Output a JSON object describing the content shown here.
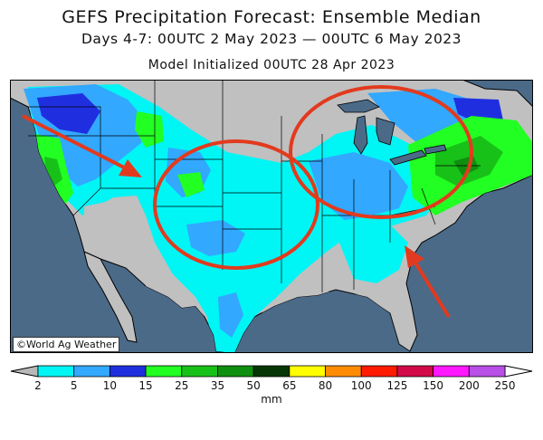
{
  "header": {
    "title": "GEFS Precipitation Forecast: Ensemble Median",
    "subtitle": "Days 4-7: 00UTC 2 May 2023 — 00UTC 6 May 2023",
    "init_line": "Model Initialized 00UTC 28 Apr 2023"
  },
  "map": {
    "credit": "©World Ag Weather",
    "annotation_color": "#e23a1e",
    "annotations": [
      "red circle",
      "red circle",
      "red arrow",
      "red arrow"
    ]
  },
  "legend": {
    "units": "mm",
    "labels": [
      "2",
      "5",
      "10",
      "15",
      "25",
      "35",
      "50",
      "65",
      "80",
      "100",
      "125",
      "150",
      "200",
      "250"
    ],
    "colors": [
      "#00f5f5",
      "#32a8ff",
      "#1f2fe0",
      "#22ff22",
      "#18c118",
      "#0f8f0f",
      "#063606",
      "#ffff00",
      "#ff8c00",
      "#ff1a00",
      "#d20a4a",
      "#ff18ff",
      "#b84fe6"
    ],
    "below_color": "#b8b8b8",
    "above_color": "#ffffff"
  }
}
